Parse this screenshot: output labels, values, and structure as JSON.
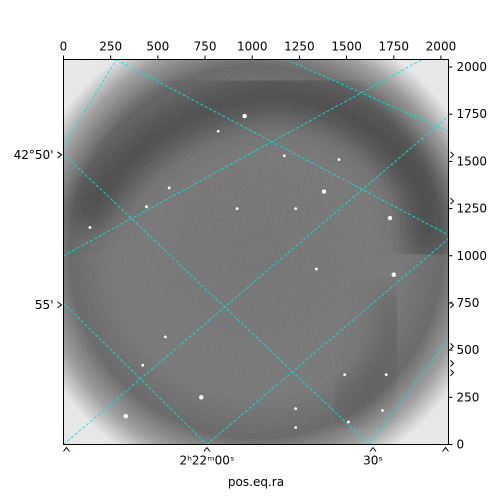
{
  "chart_data": {
    "type": "image",
    "colormap": "grayscale-inverted",
    "xlabel": "pos.eq.ra",
    "pixel_axes": {
      "x_ticks": [
        "0",
        "250",
        "500",
        "750",
        "1000",
        "1250",
        "1500",
        "1750",
        "2000"
      ],
      "x_tick_values": [
        0,
        250,
        500,
        750,
        1000,
        1250,
        1500,
        1750,
        2000
      ],
      "y_ticks": [
        "0",
        "250",
        "500",
        "750",
        "1000",
        "1250",
        "1500",
        "1750",
        "2000"
      ],
      "y_tick_values": [
        0,
        250,
        500,
        750,
        1000,
        1250,
        1500,
        1750,
        2000
      ],
      "xlim": [
        0,
        2040
      ],
      "ylim": [
        0,
        2040
      ]
    },
    "world_axes": {
      "ra_ticks": [
        {
          "label": "2ʰ22ᵐ00ˢ",
          "px": 760
        },
        {
          "label": "30ˢ",
          "px": 1640
        }
      ],
      "dec_ticks": [
        {
          "label": "42°50'",
          "py": 1535
        },
        {
          "label": "55'",
          "py": 740
        }
      ]
    },
    "grid": {
      "color": "#00e5e5",
      "style": "dashed",
      "lines_family_a": [
        [
          [
            0,
            1535
          ],
          [
            1200,
            2040
          ]
        ],
        [
          [
            0,
            750
          ],
          [
            2040,
            2040
          ]
        ],
        [
          [
            740,
            0
          ],
          [
            2040,
            1700
          ]
        ],
        [
          [
            1640,
            0
          ],
          [
            2040,
            520
          ]
        ]
      ],
      "lines_family_b": [
        [
          [
            0,
            0
          ],
          [
            1200,
            2040
          ]
        ],
        [
          [
            0,
            0
          ],
          [
            0,
            0
          ]
        ],
        [
          [
            0,
            1535
          ],
          [
            1200,
            2040
          ]
        ]
      ],
      "diag_ne": [
        [
          [
            0,
            1580
          ],
          [
            280,
            2040
          ]
        ],
        [
          [
            0,
            1000
          ],
          [
            1900,
            2040
          ]
        ],
        [
          [
            0,
            0
          ],
          [
            2040,
            1740
          ]
        ],
        [
          [
            760,
            0
          ],
          [
            2040,
            1090
          ]
        ],
        [
          [
            1620,
            0
          ],
          [
            2040,
            560
          ]
        ]
      ],
      "diag_se": [
        [
          [
            280,
            2040
          ],
          [
            2040,
            1110
          ]
        ],
        [
          [
            0,
            1540
          ],
          [
            1620,
            0
          ]
        ],
        [
          [
            0,
            750
          ],
          [
            760,
            0
          ]
        ],
        [
          [
            1180,
            2040
          ],
          [
            2040,
            1660
          ]
        ]
      ]
    },
    "sources": [
      [
        960,
        1740
      ],
      [
        820,
        1660
      ],
      [
        1170,
        1530
      ],
      [
        1460,
        1510
      ],
      [
        1380,
        1340
      ],
      [
        560,
        1360
      ],
      [
        920,
        1250
      ],
      [
        1230,
        1250
      ],
      [
        1730,
        1200
      ],
      [
        140,
        1150
      ],
      [
        440,
        1260
      ],
      [
        1340,
        930
      ],
      [
        1750,
        900
      ],
      [
        540,
        570
      ],
      [
        420,
        420
      ],
      [
        1710,
        370
      ],
      [
        730,
        250
      ],
      [
        1230,
        190
      ],
      [
        1230,
        90
      ],
      [
        1510,
        120
      ],
      [
        330,
        150
      ],
      [
        1690,
        180
      ],
      [
        1490,
        370
      ]
    ]
  }
}
